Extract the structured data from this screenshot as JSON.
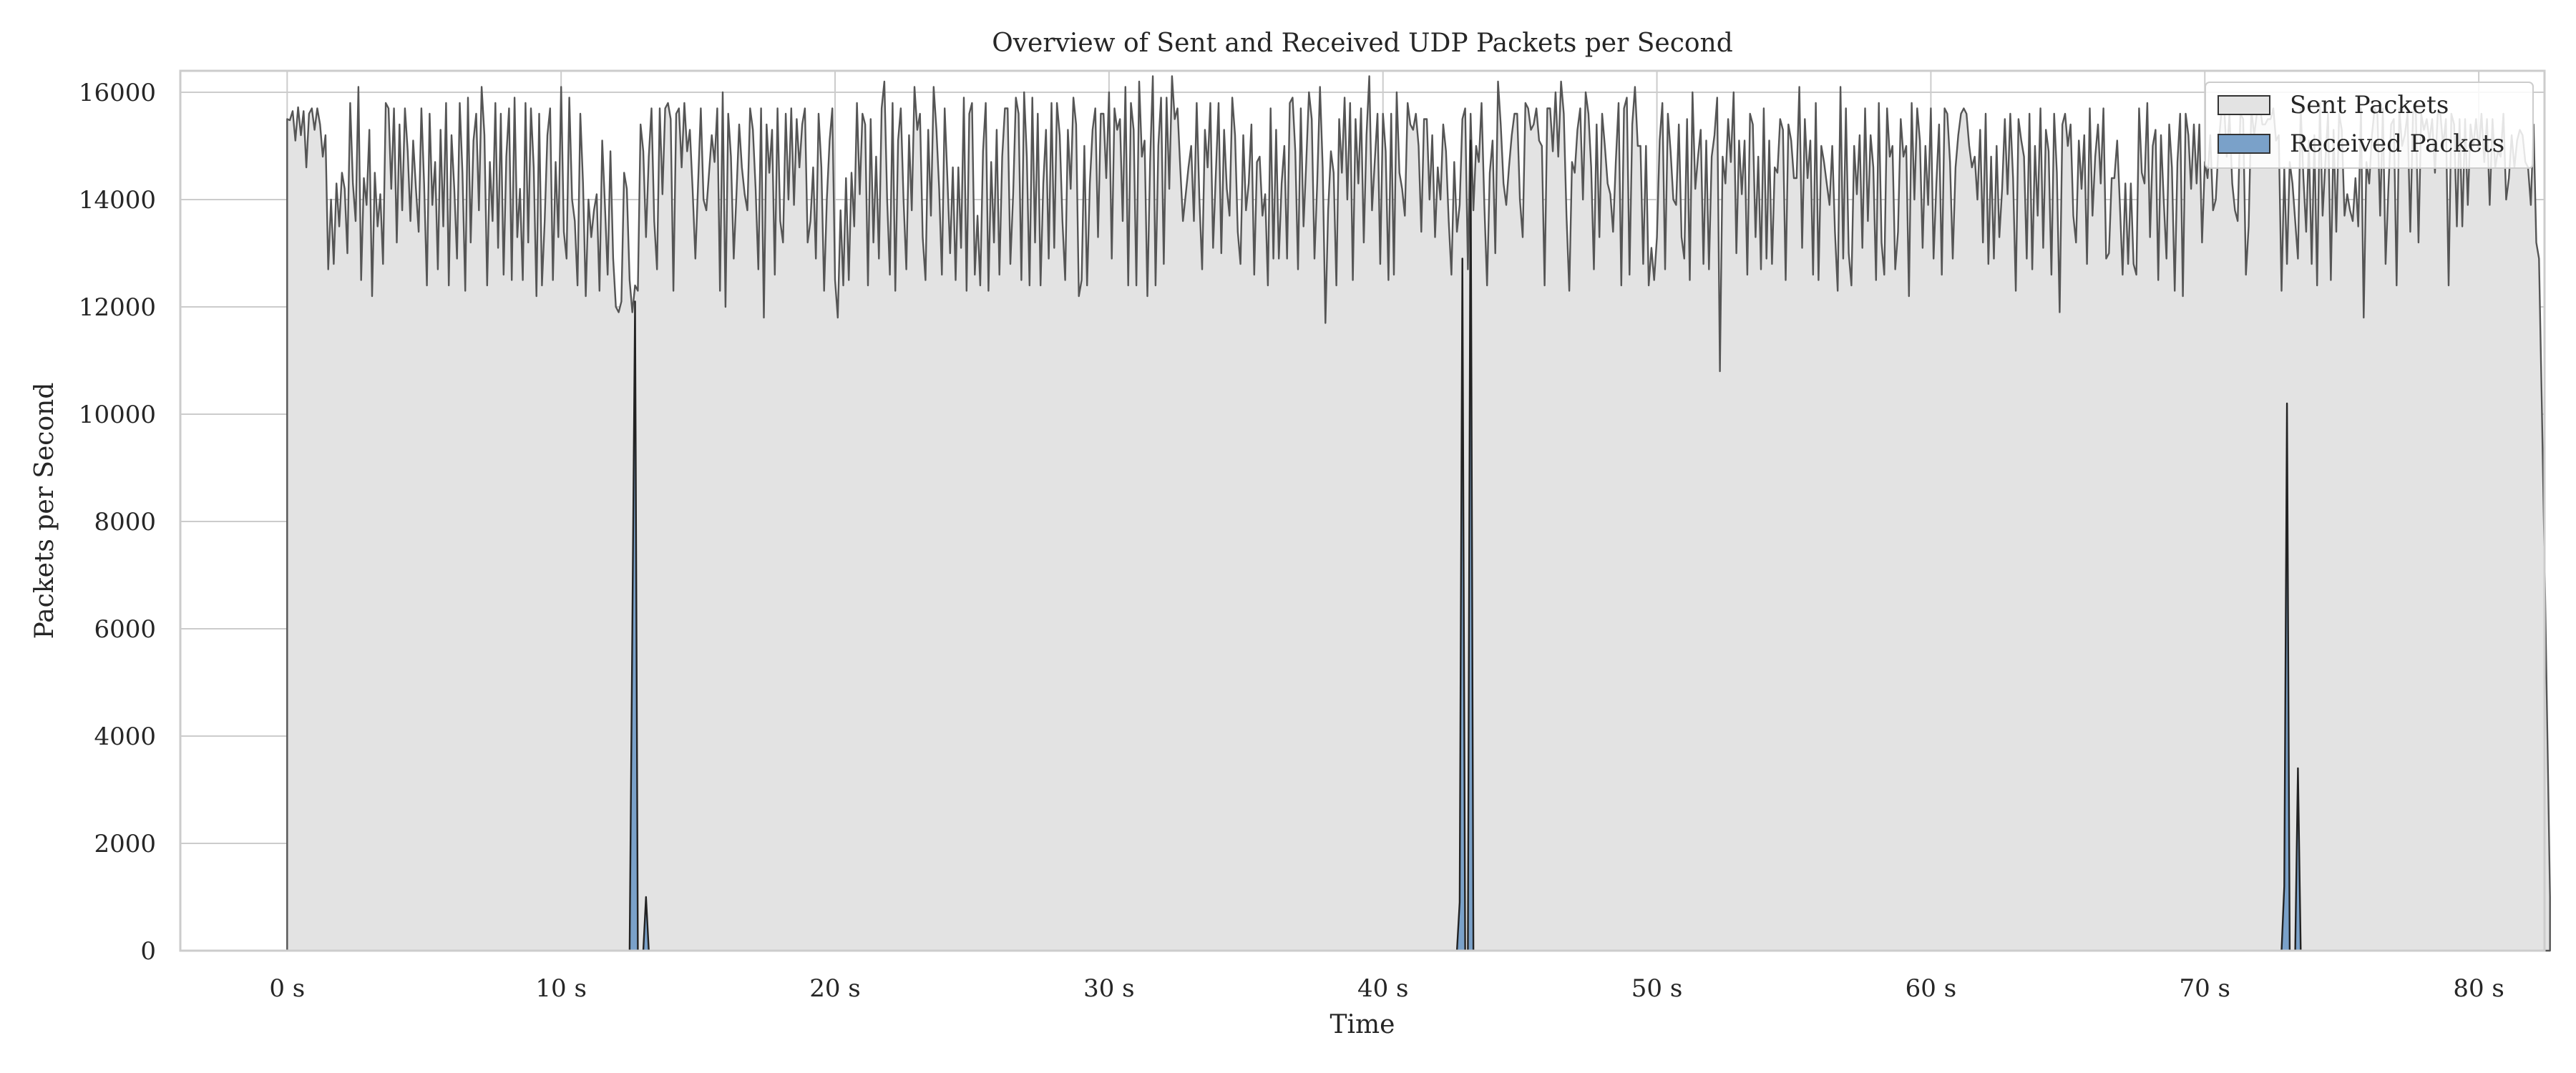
{
  "chart_data": {
    "type": "area",
    "title": "Overview of Sent and Received UDP Packets per Second",
    "xlabel": "Time",
    "ylabel": "Packets per Second",
    "xlim": [
      -3.9,
      82.4
    ],
    "ylim": [
      0,
      16400
    ],
    "x_ticks": [
      0,
      10,
      20,
      30,
      40,
      50,
      60,
      70,
      80
    ],
    "x_tick_labels": [
      "0 s",
      "10 s",
      "20 s",
      "30 s",
      "40 s",
      "50 s",
      "60 s",
      "70 s",
      "80 s"
    ],
    "y_ticks": [
      0,
      2000,
      4000,
      6000,
      8000,
      10000,
      12000,
      14000,
      16000
    ],
    "y_tick_labels": [
      "0",
      "2000",
      "4000",
      "6000",
      "8000",
      "10000",
      "12000",
      "14000",
      "16000"
    ],
    "grid": true,
    "legend_position": "top-right",
    "series": [
      {
        "name": "Sent Packets",
        "fill": "#e3e3e3",
        "stroke": "#555555",
        "x_start": 0,
        "x_step": 0.1,
        "values": [
          15500,
          15480,
          15650,
          15100,
          15720,
          15200,
          15650,
          14600,
          15600,
          15700,
          15300,
          15700,
          15400,
          14800,
          15200,
          12700,
          14000,
          12800,
          14300,
          13500,
          14500,
          14200,
          13000,
          15800,
          14300,
          13600,
          16100,
          12500,
          14400,
          13900,
          15300,
          12200,
          14500,
          13500,
          14100,
          12800,
          15800,
          15700,
          14200,
          15700,
          13200,
          15400,
          13800,
          15700,
          14900,
          13600,
          15100,
          14200,
          13400,
          15700,
          14300,
          12400,
          15600,
          13900,
          14700,
          12700,
          15300,
          13500,
          15800,
          12400,
          15200,
          14200,
          12900,
          15800,
          14500,
          12300,
          15900,
          13200,
          15100,
          15600,
          13800,
          16100,
          15200,
          12400,
          14700,
          13600,
          15800,
          13100,
          15600,
          12600,
          14800,
          15700,
          12500,
          15900,
          13300,
          14200,
          12500,
          15800,
          13200,
          15700,
          14600,
          12200,
          15600,
          12400,
          13600,
          15200,
          15700,
          12500,
          14700,
          13300,
          16100,
          13400,
          12900,
          15900,
          14000,
          13600,
          12400,
          15600,
          14300,
          12200,
          14000,
          13300,
          13800,
          14100,
          12300,
          15100,
          13900,
          12600,
          14900,
          12900,
          12000,
          11900,
          12100,
          14500,
          14200,
          12500,
          11900,
          12400,
          12300,
          15400,
          14900,
          13300,
          14800,
          15700,
          13600,
          12700,
          15700,
          14100,
          15700,
          15800,
          15500,
          12300,
          15600,
          15700,
          14600,
          15800,
          14900,
          15300,
          14200,
          12900,
          14300,
          15700,
          14000,
          13800,
          14500,
          15200,
          14700,
          15700,
          12300,
          16000,
          12000,
          15600,
          14800,
          12900,
          14100,
          15400,
          14600,
          14100,
          13800,
          15700,
          15300,
          14200,
          12700,
          15700,
          11800,
          15400,
          14500,
          15300,
          12600,
          15700,
          13600,
          13200,
          15600,
          14000,
          15700,
          13900,
          15500,
          14600,
          15400,
          15700,
          13200,
          13600,
          14600,
          12900,
          15600,
          14600,
          12300,
          14000,
          15100,
          15700,
          12500,
          11800,
          13800,
          12400,
          14400,
          12500,
          14500,
          13500,
          15800,
          14100,
          15600,
          15400,
          12400,
          15500,
          13200,
          14800,
          12900,
          15700,
          16200,
          14000,
          12600,
          15800,
          12300,
          15100,
          15700,
          14000,
          12700,
          15200,
          13800,
          16100,
          15300,
          15600,
          13300,
          12500,
          15300,
          13700,
          16100,
          15300,
          14200,
          12600,
          15700,
          14400,
          13000,
          14600,
          12500,
          14600,
          13100,
          15900,
          12300,
          15600,
          15800,
          12600,
          13700,
          12400,
          14900,
          15800,
          12300,
          14700,
          13200,
          15300,
          12600,
          14800,
          15700,
          15700,
          12800,
          14100,
          15900,
          15600,
          12500,
          16000,
          14800,
          12400,
          15900,
          13200,
          15600,
          12400,
          14300,
          15300,
          12900,
          15800,
          13100,
          15800,
          15200,
          13600,
          12500,
          15300,
          14200,
          15900,
          15400,
          12200,
          12500,
          15000,
          12400,
          14300,
          15300,
          15700,
          13300,
          15600,
          15600,
          14400,
          16000,
          12900,
          15700,
          15300,
          15500,
          13600,
          16100,
          12400,
          15800,
          15300,
          12400,
          16200,
          14800,
          15100,
          12200,
          14700,
          16300,
          12400,
          15000,
          15900,
          12800,
          15900,
          14200,
          16300,
          15500,
          15700,
          14600,
          13600,
          14100,
          14600,
          15000,
          13600,
          15800,
          14000,
          12700,
          15300,
          14600,
          15800,
          13100,
          14500,
          15800,
          13000,
          15300,
          14200,
          13700,
          15900,
          15200,
          13400,
          12800,
          15200,
          13800,
          14300,
          15400,
          12600,
          14700,
          14800,
          13700,
          14100,
          12400,
          15700,
          12900,
          15300,
          12900,
          14300,
          15000,
          12900,
          15800,
          15900,
          14900,
          12700,
          15700,
          13500,
          14700,
          16000,
          15500,
          12900,
          14300,
          16100,
          14600,
          11700,
          13800,
          14900,
          14500,
          12400,
          15500,
          14500,
          15900,
          14000,
          15800,
          12500,
          15500,
          14300,
          15700,
          13200,
          15200,
          16300,
          13800,
          14700,
          15600,
          12800,
          15600,
          14900,
          12500,
          15600,
          12600,
          16000,
          14500,
          14200,
          13700,
          15800,
          15400,
          15300,
          15600,
          15000,
          13400,
          15500,
          15500,
          14000,
          15200,
          13300,
          14600,
          14000,
          15400,
          14900,
          13600,
          12600,
          14700,
          13400,
          13900,
          15500,
          15700,
          12700,
          15600,
          13800,
          15000,
          14700,
          15800,
          13900,
          12400,
          14500,
          15100,
          13000,
          16200,
          15400,
          14300,
          13900,
          14600,
          15200,
          15600,
          15600,
          14000,
          13300,
          15800,
          15700,
          15300,
          15400,
          15700,
          15100,
          15000,
          12400,
          15700,
          15700,
          14900,
          16000,
          14800,
          16200,
          15600,
          13700,
          12300,
          14700,
          14500,
          15300,
          15700,
          14000,
          16000,
          15600,
          14600,
          12700,
          15400,
          13300,
          15600,
          15000,
          14300,
          14100,
          13400,
          14700,
          15800,
          12400,
          15700,
          15900,
          12600,
          15400,
          16100,
          15000,
          15000,
          12800,
          15000,
          12400,
          13100,
          12500,
          13300,
          15100,
          15800,
          12700,
          15600,
          14900,
          14000,
          13900,
          15400,
          13300,
          12900,
          15500,
          12500,
          16000,
          14200,
          14800,
          15300,
          12800,
          15100,
          12700,
          14800,
          15200,
          15900,
          10800,
          14800,
          14300,
          15500,
          14700,
          16000,
          13000,
          15100,
          14100,
          15100,
          12600,
          15600,
          15400,
          13300,
          14800,
          12700,
          15700,
          12900,
          15100,
          12800,
          14600,
          14500,
          15500,
          15300,
          12500,
          15400,
          15100,
          14400,
          14400,
          16100,
          13100,
          15500,
          14400,
          15100,
          12600,
          15800,
          12500,
          15000,
          14700,
          14300,
          13900,
          15000,
          13400,
          12300,
          16100,
          12900,
          15700,
          13000,
          12400,
          15000,
          14100,
          15200,
          13100,
          15700,
          13600,
          15200,
          14600,
          12500,
          15800,
          13200,
          12600,
          15700,
          14800,
          15000,
          12700,
          13400,
          15500,
          14800,
          15000,
          12200,
          15800,
          14000,
          15700,
          15100,
          13100,
          15000,
          13900,
          15700,
          12900,
          14300,
          15400,
          12600,
          15700,
          15600,
          14700,
          12900,
          14600,
          15200,
          15600,
          15700,
          15600,
          15000,
          14600,
          14800,
          14000,
          15300,
          13200,
          15600,
          12800,
          14800,
          12900,
          15000,
          13300,
          14200,
          15500,
          14100,
          15600,
          14400,
          12300,
          15500,
          15100,
          14800,
          12900,
          15600,
          12700,
          15000,
          13700,
          15700,
          13100,
          15300,
          14900,
          12600,
          15600,
          14500,
          11900,
          15400,
          15600,
          15000,
          15400,
          13700,
          13200,
          15100,
          14200,
          15200,
          12800,
          15700,
          13700,
          14800,
          15400,
          14300,
          15700,
          12900,
          13000,
          14400,
          14400,
          15100,
          13900,
          12600,
          14300,
          12800,
          14300,
          12800,
          12600,
          15700,
          14500,
          14300,
          15800,
          13300,
          15000,
          15300,
          12500,
          15200,
          14000,
          12900,
          15400,
          14600,
          12300,
          14700,
          15600,
          12200,
          15600,
          15200,
          14200,
          15400,
          14300,
          15400,
          13200,
          14700,
          14400,
          15200,
          13800,
          14000,
          15000,
          15600,
          15800,
          14800,
          15600,
          14300,
          13800,
          13600,
          15600,
          15500,
          12600,
          13500,
          15700,
          15200,
          15600,
          15800,
          15400,
          15400,
          15500,
          15500,
          15700,
          15100,
          15200,
          12300,
          14600,
          12800,
          14700,
          14300,
          13600,
          12900,
          15700,
          14400,
          13400,
          15100,
          12800,
          15200,
          12400,
          15800,
          13700,
          14700,
          15600,
          12500,
          15300,
          13400,
          15600,
          15300,
          13700,
          14100,
          13800,
          13600,
          14400,
          13500,
          15700,
          11800,
          14700,
          14300,
          15200,
          15700,
          15600,
          13700,
          15700,
          12800,
          14200,
          15400,
          15500,
          12400,
          15700,
          15000,
          15200,
          15600,
          13400,
          15600,
          15700,
          13200,
          15600,
          15300,
          15500,
          15100,
          15500,
          14500,
          15600,
          15600,
          15000,
          15500,
          12400,
          15600,
          15400,
          13500,
          15500,
          13500,
          15500,
          13900,
          15400,
          15000,
          15500,
          14900,
          15600,
          14700,
          15500,
          13900,
          15500,
          14600,
          14900,
          14800,
          15600,
          14000,
          14400,
          15200,
          14600,
          15100,
          15300,
          15200,
          14700,
          14600,
          13900,
          15400,
          13200,
          12900,
          10200,
          7300,
          4200,
          1000
        ]
      },
      {
        "name": "Received Packets",
        "fill": "#7aa1c9",
        "stroke": "#222222",
        "x": [
          0,
          12.4,
          12.5,
          12.6,
          12.7,
          12.8,
          12.9,
          13.0,
          13.1,
          13.2,
          13.3,
          42.6,
          42.7,
          42.8,
          42.9,
          43.0,
          43.1,
          43.2,
          43.3,
          43.4,
          43.5,
          43.6,
          72.7,
          72.8,
          72.9,
          73.0,
          73.1,
          73.2,
          73.3,
          73.4,
          73.5,
          73.6,
          73.7,
          78.4
        ],
        "values": [
          0,
          0,
          0,
          6000,
          12100,
          0,
          0,
          0,
          1000,
          0,
          0,
          0,
          0,
          900,
          12900,
          0,
          0,
          15100,
          0,
          0,
          0,
          0,
          0,
          0,
          1200,
          10200,
          0,
          0,
          0,
          3400,
          0,
          0,
          0,
          0
        ]
      }
    ]
  }
}
